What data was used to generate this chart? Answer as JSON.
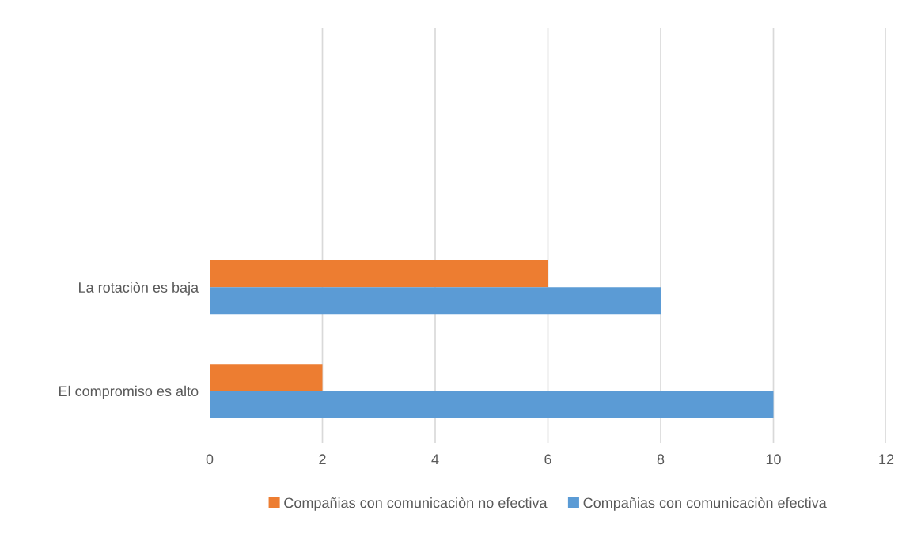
{
  "chart_data": {
    "type": "bar",
    "orientation": "horizontal",
    "categories": [
      null,
      null,
      "La rotaciòn es baja",
      "El compromiso es alto"
    ],
    "series": [
      {
        "name": "Compañias con comunicaciòn no efectiva",
        "color": "#ed7d31",
        "values": [
          null,
          null,
          6,
          2
        ]
      },
      {
        "name": "Compañias con comunicaciòn efectiva",
        "color": "#5b9bd5",
        "values": [
          null,
          null,
          8,
          10
        ]
      }
    ],
    "xlim": [
      0,
      12
    ],
    "xticks": [
      0,
      2,
      4,
      6,
      8,
      10,
      12
    ],
    "grid": "x",
    "legend": "bottom"
  }
}
